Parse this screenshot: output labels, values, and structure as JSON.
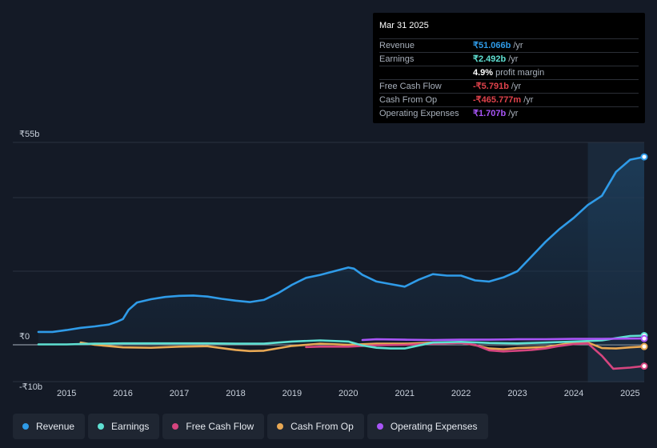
{
  "tooltip": {
    "date": "Mar 31 2025",
    "rows": [
      {
        "label": "Revenue",
        "value": "₹51.066b",
        "unit": "/yr",
        "color": "#2f9be8"
      },
      {
        "label": "Earnings",
        "value": "₹2.492b",
        "unit": "/yr",
        "color": "#5fe0d2"
      },
      {
        "label": "",
        "value": "4.9%",
        "unit": "profit margin",
        "color": "#ffffff"
      },
      {
        "label": "Free Cash Flow",
        "value": "-₹5.791b",
        "unit": "/yr",
        "color": "#e0424b"
      },
      {
        "label": "Cash From Op",
        "value": "-₹465.777m",
        "unit": "/yr",
        "color": "#e0424b"
      },
      {
        "label": "Operating Expenses",
        "value": "₹1.707b",
        "unit": "/yr",
        "color": "#a855f7"
      }
    ]
  },
  "legend": [
    {
      "label": "Revenue",
      "color": "#2f9be8"
    },
    {
      "label": "Earnings",
      "color": "#5fe0d2"
    },
    {
      "label": "Free Cash Flow",
      "color": "#d6457f"
    },
    {
      "label": "Cash From Op",
      "color": "#e8a854"
    },
    {
      "label": "Operating Expenses",
      "color": "#a855f7"
    }
  ],
  "chart_data": {
    "type": "line",
    "y_tick_labels": [
      "₹55b",
      "₹0",
      "-₹10b"
    ],
    "x_tick_labels": [
      "2015",
      "2016",
      "2017",
      "2018",
      "2019",
      "2020",
      "2021",
      "2022",
      "2023",
      "2024",
      "2025"
    ],
    "ylim": [
      -10,
      55
    ],
    "xlim": [
      2014.5,
      2025.25
    ],
    "grid": true,
    "highlight_from": 2024.25,
    "series": [
      {
        "name": "Revenue",
        "color": "#2f9be8",
        "points": [
          [
            2014.5,
            3.5
          ],
          [
            2014.75,
            3.5
          ],
          [
            2015.0,
            4.0
          ],
          [
            2015.25,
            4.6
          ],
          [
            2015.5,
            5.0
          ],
          [
            2015.75,
            5.5
          ],
          [
            2015.9,
            6.3
          ],
          [
            2016.0,
            7.0
          ],
          [
            2016.1,
            9.5
          ],
          [
            2016.25,
            11.5
          ],
          [
            2016.5,
            12.4
          ],
          [
            2016.75,
            13.0
          ],
          [
            2017.0,
            13.3
          ],
          [
            2017.25,
            13.4
          ],
          [
            2017.5,
            13.1
          ],
          [
            2017.75,
            12.5
          ],
          [
            2018.0,
            12.0
          ],
          [
            2018.25,
            11.6
          ],
          [
            2018.5,
            12.2
          ],
          [
            2018.75,
            14.0
          ],
          [
            2019.0,
            16.3
          ],
          [
            2019.25,
            18.2
          ],
          [
            2019.5,
            19.0
          ],
          [
            2019.75,
            20.0
          ],
          [
            2020.0,
            21.0
          ],
          [
            2020.1,
            20.7
          ],
          [
            2020.25,
            19.0
          ],
          [
            2020.5,
            17.2
          ],
          [
            2020.75,
            16.5
          ],
          [
            2021.0,
            15.8
          ],
          [
            2021.25,
            17.7
          ],
          [
            2021.5,
            19.2
          ],
          [
            2021.75,
            18.8
          ],
          [
            2022.0,
            18.8
          ],
          [
            2022.25,
            17.5
          ],
          [
            2022.5,
            17.2
          ],
          [
            2022.75,
            18.3
          ],
          [
            2023.0,
            20.0
          ],
          [
            2023.25,
            24.0
          ],
          [
            2023.5,
            28.0
          ],
          [
            2023.75,
            31.5
          ],
          [
            2024.0,
            34.5
          ],
          [
            2024.25,
            38.0
          ],
          [
            2024.5,
            40.5
          ],
          [
            2024.75,
            47.0
          ],
          [
            2025.0,
            50.3
          ],
          [
            2025.25,
            51.07
          ]
        ]
      },
      {
        "name": "Earnings",
        "color": "#5fe0d2",
        "points": [
          [
            2014.5,
            0.1
          ],
          [
            2015.0,
            0.1
          ],
          [
            2015.5,
            0.3
          ],
          [
            2016.0,
            0.4
          ],
          [
            2016.5,
            0.4
          ],
          [
            2017.0,
            0.4
          ],
          [
            2017.5,
            0.4
          ],
          [
            2018.0,
            0.3
          ],
          [
            2018.5,
            0.3
          ],
          [
            2019.0,
            0.9
          ],
          [
            2019.5,
            1.2
          ],
          [
            2020.0,
            0.9
          ],
          [
            2020.25,
            -0.2
          ],
          [
            2020.5,
            -0.8
          ],
          [
            2020.75,
            -1.0
          ],
          [
            2021.0,
            -1.0
          ],
          [
            2021.25,
            -0.2
          ],
          [
            2021.5,
            0.6
          ],
          [
            2022.0,
            0.8
          ],
          [
            2022.5,
            0.5
          ],
          [
            2023.0,
            0.4
          ],
          [
            2023.5,
            0.6
          ],
          [
            2024.0,
            0.9
          ],
          [
            2024.5,
            1.2
          ],
          [
            2024.75,
            1.8
          ],
          [
            2025.0,
            2.4
          ],
          [
            2025.25,
            2.49
          ]
        ]
      },
      {
        "name": "Free Cash Flow",
        "color": "#d6457f",
        "points": [
          [
            2019.25,
            -0.6
          ],
          [
            2019.5,
            -0.5
          ],
          [
            2020.0,
            -0.5
          ],
          [
            2020.5,
            -0.1
          ],
          [
            2021.0,
            0.0
          ],
          [
            2021.5,
            0.3
          ],
          [
            2022.0,
            0.5
          ],
          [
            2022.25,
            0.0
          ],
          [
            2022.5,
            -1.5
          ],
          [
            2022.75,
            -1.8
          ],
          [
            2023.0,
            -1.6
          ],
          [
            2023.25,
            -1.4
          ],
          [
            2023.5,
            -1.0
          ],
          [
            2023.75,
            -0.3
          ],
          [
            2024.0,
            0.2
          ],
          [
            2024.25,
            0.4
          ],
          [
            2024.5,
            -3.0
          ],
          [
            2024.7,
            -6.5
          ],
          [
            2025.0,
            -6.2
          ],
          [
            2025.25,
            -5.79
          ]
        ]
      },
      {
        "name": "Cash From Op",
        "color": "#e8a854",
        "points": [
          [
            2015.25,
            0.6
          ],
          [
            2015.5,
            0.0
          ],
          [
            2016.0,
            -0.7
          ],
          [
            2016.5,
            -0.8
          ],
          [
            2017.0,
            -0.5
          ],
          [
            2017.5,
            -0.4
          ],
          [
            2018.0,
            -1.4
          ],
          [
            2018.25,
            -1.7
          ],
          [
            2018.5,
            -1.6
          ],
          [
            2019.0,
            -0.3
          ],
          [
            2019.5,
            0.3
          ],
          [
            2020.0,
            0.0
          ],
          [
            2020.5,
            0.3
          ],
          [
            2021.0,
            0.3
          ],
          [
            2021.5,
            0.6
          ],
          [
            2022.0,
            0.6
          ],
          [
            2022.25,
            -0.1
          ],
          [
            2022.5,
            -1.0
          ],
          [
            2022.75,
            -1.2
          ],
          [
            2023.0,
            -0.9
          ],
          [
            2023.5,
            -0.6
          ],
          [
            2024.0,
            0.6
          ],
          [
            2024.25,
            0.6
          ],
          [
            2024.5,
            -0.9
          ],
          [
            2024.75,
            -1.0
          ],
          [
            2025.0,
            -0.7
          ],
          [
            2025.25,
            -0.47
          ]
        ]
      },
      {
        "name": "Operating Expenses",
        "color": "#a855f7",
        "points": [
          [
            2020.25,
            1.3
          ],
          [
            2020.5,
            1.5
          ],
          [
            2021.0,
            1.4
          ],
          [
            2021.5,
            1.3
          ],
          [
            2022.0,
            1.4
          ],
          [
            2022.5,
            1.4
          ],
          [
            2023.0,
            1.5
          ],
          [
            2023.5,
            1.5
          ],
          [
            2024.0,
            1.6
          ],
          [
            2024.5,
            1.6
          ],
          [
            2025.0,
            1.7
          ],
          [
            2025.25,
            1.71
          ]
        ]
      }
    ]
  }
}
